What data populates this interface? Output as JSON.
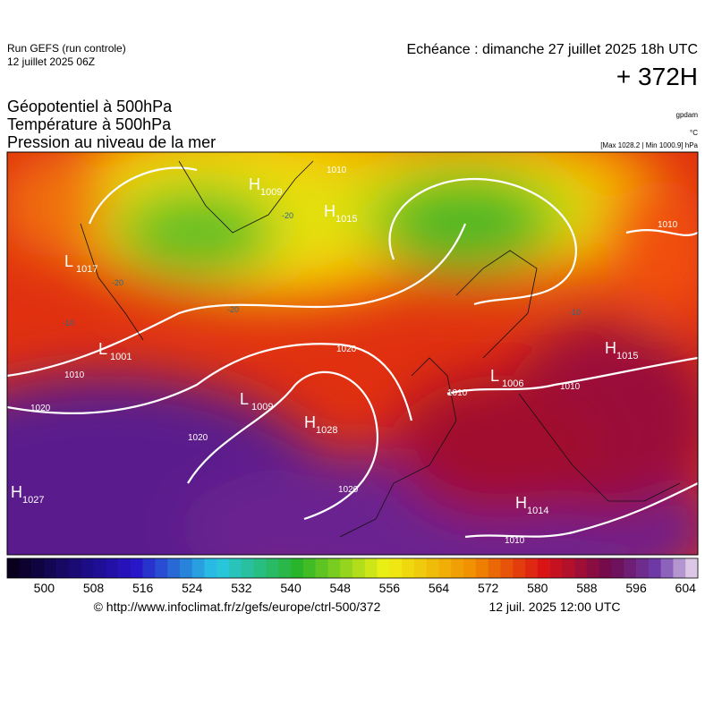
{
  "header": {
    "run": "Run GEFS (run controle)",
    "run_date": "12 juillet 2025 06Z",
    "valid": "Echéance : dimanche 27 juillet 2025 18h UTC",
    "lead": "+ 372H",
    "titles": [
      "Géopotentiel à 500hPa",
      "Température à 500hPa",
      "Pression au niveau de la mer"
    ],
    "units": [
      "gpdam",
      "°C",
      "[Max 1028.2 | Min 1000.9] hPa"
    ]
  },
  "centers": [
    {
      "letter": "H",
      "value": "1009"
    },
    {
      "letter": "H",
      "value": "1015"
    },
    {
      "letter": "L",
      "value": "1017"
    },
    {
      "letter": "L",
      "value": "1001"
    },
    {
      "letter": "L",
      "value": "1009"
    },
    {
      "letter": "H",
      "value": "1028"
    },
    {
      "letter": "H",
      "value": "1027"
    },
    {
      "letter": "L",
      "value": "1006"
    },
    {
      "letter": "H",
      "value": "1015"
    },
    {
      "letter": "H",
      "value": "1014"
    }
  ],
  "isobar_labels": [
    "1010",
    "1020",
    "1020",
    "1020",
    "1010",
    "1010",
    "1010",
    "1010",
    "1020",
    "1010"
  ],
  "temperature_labels": [
    "-20",
    "-20",
    "-20",
    "-10",
    "-10"
  ],
  "colorbar": {
    "ticks": [
      "500",
      "508",
      "516",
      "524",
      "532",
      "540",
      "548",
      "556",
      "564",
      "572",
      "580",
      "588",
      "596",
      "604"
    ]
  },
  "footer": {
    "source": "© http://www.infoclimat.fr/z/gefs/europe/ctrl-500/372",
    "date": "12 juil. 2025 12:00 UTC"
  }
}
